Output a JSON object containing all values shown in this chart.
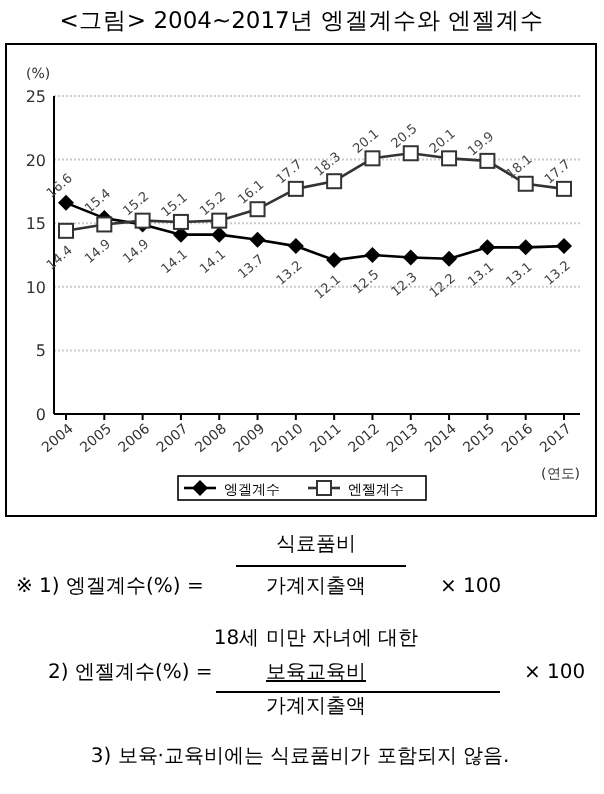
{
  "chart_data": {
    "type": "line",
    "title": "<그림> 2004~2017년 엥겔계수와 엔젤계수",
    "ylabel": "(%)",
    "xlabel": "(연도)",
    "categories": [
      "2004",
      "2005",
      "2006",
      "2007",
      "2008",
      "2009",
      "2010",
      "2011",
      "2012",
      "2013",
      "2014",
      "2015",
      "2016",
      "2017"
    ],
    "series": [
      {
        "name": "엥겔계수",
        "color": "#000000",
        "marker": "diamond",
        "values": [
          16.6,
          15.4,
          14.9,
          14.1,
          14.1,
          13.7,
          13.2,
          12.1,
          12.5,
          12.3,
          12.2,
          13.1,
          13.1,
          13.2
        ]
      },
      {
        "name": "엔젤계수",
        "color": "#333333",
        "marker": "square",
        "values": [
          14.4,
          14.9,
          15.2,
          15.1,
          15.2,
          16.1,
          17.7,
          18.3,
          20.1,
          20.5,
          20.1,
          19.9,
          18.1,
          17.7
        ]
      }
    ],
    "ylim": [
      0,
      25
    ],
    "yticks": [
      0,
      5,
      10,
      15,
      20,
      25
    ],
    "grid": "y",
    "legend": "bottom",
    "data_labels": true,
    "line_style": "solid",
    "annotations": [
      "식료품비",
      "※ 1) 엥겔계수(%) =",
      "가계지출액",
      "× 100",
      "18세 미만 자녀에 대한",
      "2) 엔젤계수(%) =",
      "보육교육비",
      "× 100",
      "가계지출액",
      "3) 보육·교육비에는 식료품비가 포함되지 않음."
    ]
  }
}
